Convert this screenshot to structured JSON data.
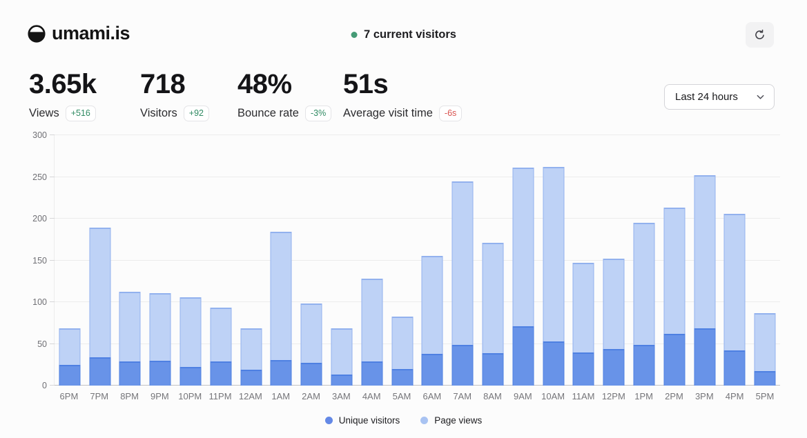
{
  "header": {
    "site_name": "umami.is",
    "current_visitors": "7 current visitors",
    "visitor_dot_color": "#459b76"
  },
  "toolbar": {
    "refresh_icon": "refresh"
  },
  "stats": [
    {
      "value": "3.65k",
      "label": "Views",
      "change": "+516",
      "sentiment": "pos",
      "min_width": 161
    },
    {
      "value": "718",
      "label": "Visitors",
      "change": "+92",
      "sentiment": "pos",
      "min_width": 141
    },
    {
      "value": "48%",
      "label": "Bounce rate",
      "change": "-3%",
      "sentiment": "pos",
      "min_width": 153
    },
    {
      "value": "51s",
      "label": "Average visit time",
      "change": "-6s",
      "sentiment": "neg",
      "min_width": 180
    }
  ],
  "date_filter": {
    "label": "Last 24 hours"
  },
  "chart_data": {
    "type": "bar",
    "title": "",
    "xlabel": "",
    "ylabel": "",
    "ylim": [
      0,
      300
    ],
    "yticks": [
      0,
      50,
      100,
      150,
      200,
      250,
      300
    ],
    "grid": true,
    "legend_position": "bottom",
    "bar_style": "overlaid",
    "categories": [
      "6PM",
      "7PM",
      "8PM",
      "9PM",
      "10PM",
      "11PM",
      "12AM",
      "1AM",
      "2AM",
      "3AM",
      "4AM",
      "5AM",
      "6AM",
      "7AM",
      "8AM",
      "9AM",
      "10AM",
      "11AM",
      "12PM",
      "1PM",
      "2PM",
      "3PM",
      "4PM",
      "5PM"
    ],
    "series": [
      {
        "name": "Unique visitors",
        "fill": "#6893e8",
        "border": "#4e80e2",
        "values": [
          25,
          34,
          29,
          30,
          22,
          29,
          19,
          31,
          27,
          13,
          29,
          20,
          38,
          49,
          39,
          71,
          53,
          40,
          44,
          49,
          62,
          69,
          42,
          17
        ]
      },
      {
        "name": "Page views",
        "fill": "#bed2f6",
        "border": "#92b1ee",
        "values": [
          69,
          189,
          112,
          111,
          106,
          93,
          69,
          184,
          98,
          69,
          128,
          83,
          155,
          245,
          171,
          261,
          262,
          147,
          152,
          195,
          213,
          252,
          206,
          87
        ]
      }
    ]
  }
}
